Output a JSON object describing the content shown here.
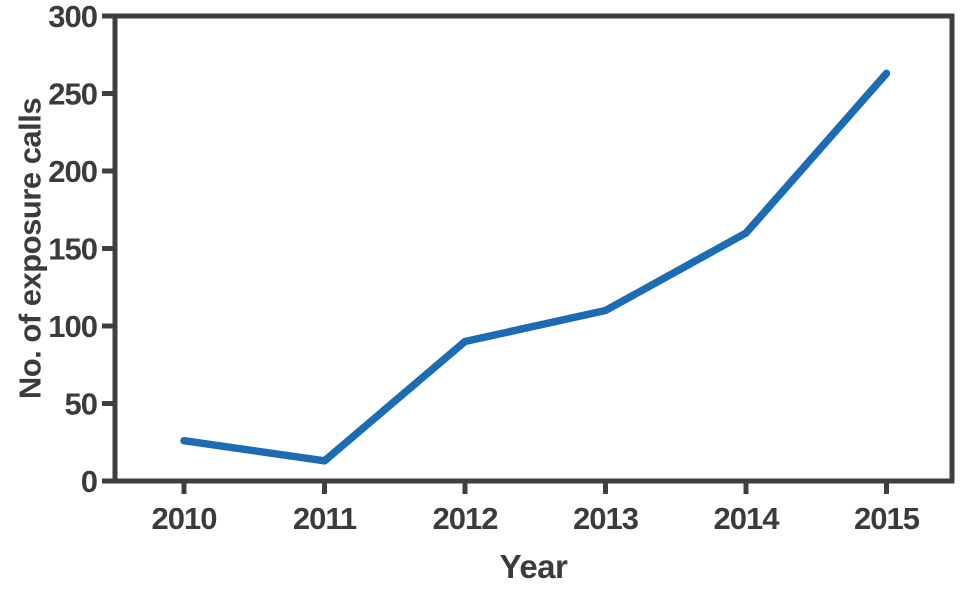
{
  "figure": {
    "background": "#ffffff"
  },
  "chart_data": {
    "type": "line",
    "title": "",
    "categories": [
      "2010",
      "2011",
      "2012",
      "2013",
      "2014",
      "2015"
    ],
    "values": [
      26,
      13,
      90,
      110,
      160,
      263
    ],
    "xlabel": "Year",
    "ylabel": "No. of exposure calls",
    "ylim": [
      0,
      300
    ],
    "yticks": [
      0,
      50,
      100,
      150,
      200,
      250,
      300
    ],
    "grid": false,
    "legend": "none",
    "colors": {
      "line": "#1b6cb4",
      "frame": "#3f3f3f",
      "text": "#3b3b3b"
    }
  }
}
